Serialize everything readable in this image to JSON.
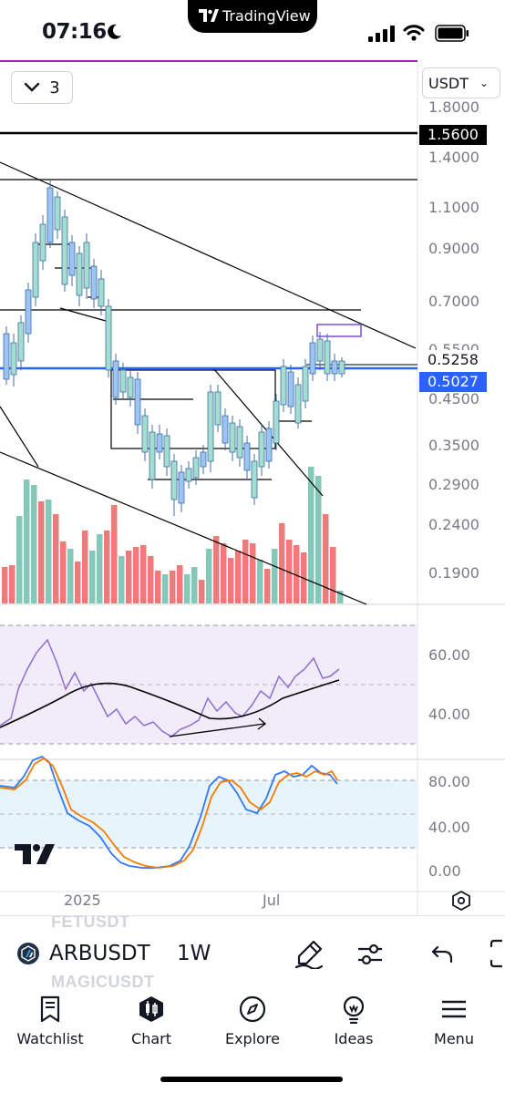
{
  "status_bar": {
    "time": "07:16",
    "pill_label": "TradingView"
  },
  "chart": {
    "collapse_count": "3",
    "currency": "USDT",
    "price_axis": [
      "1.8000",
      "1.4000",
      "1.1000",
      "0.9000",
      "0.7000",
      "0.5500",
      "0.4500",
      "0.3500",
      "0.2900",
      "0.2400",
      "0.1900"
    ],
    "price_tags": {
      "level": "1.5600",
      "last": "0.5258",
      "line": "0.5027"
    },
    "rsi_axis": [
      "60.00",
      "40.00"
    ],
    "stoch_axis": [
      "80.00",
      "40.00",
      "0.00"
    ],
    "time_axis": [
      "2025",
      "Jul"
    ],
    "colors": {
      "bull": "#82c9b8",
      "bear": "#ef7a78",
      "candle_bull": "#a5dccb",
      "candle_body_blue": "#9ec3ee",
      "blue_line": "#2962ff",
      "rsi": "#8e6ccf",
      "stoch_k": "#3179f5",
      "stoch_d": "#f57c00"
    }
  },
  "symbol_bar": {
    "ghost_top": "FETUSDT",
    "symbol": "ARBUSDT",
    "interval": "1W",
    "ghost_bottom": "MAGICUSDT"
  },
  "nav": {
    "watchlist": "Watchlist",
    "chart": "Chart",
    "explore": "Explore",
    "ideas": "Ideas",
    "menu": "Menu"
  }
}
